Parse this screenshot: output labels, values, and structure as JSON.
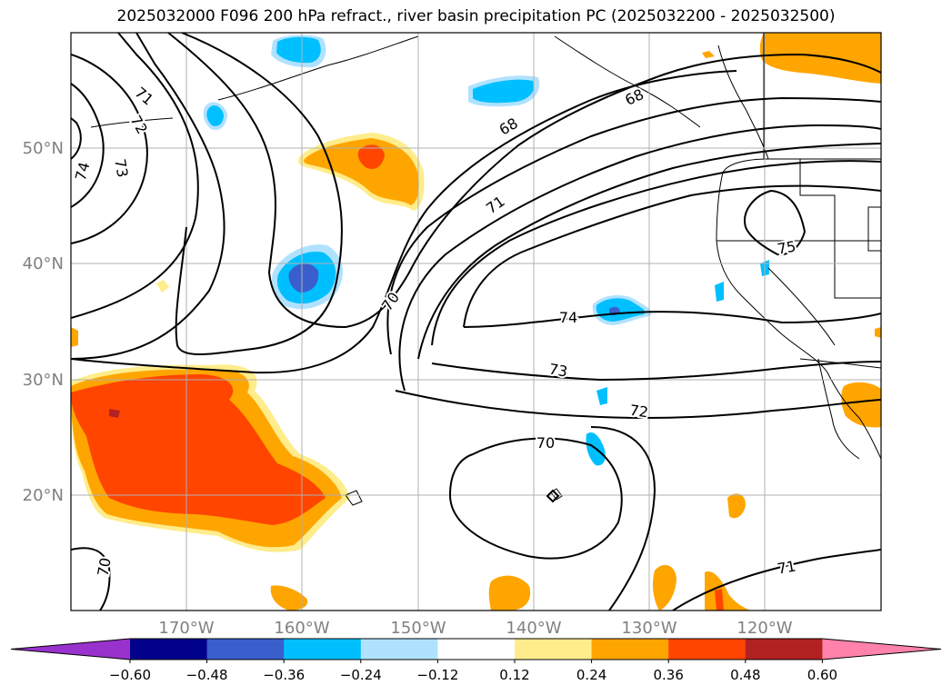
{
  "title": "2025032000 F096 200 hPa refract., river basin precipitation PC (2025032200 - 2025032500)",
  "lat_labels": [
    "50°N",
    "40°N",
    "30°N",
    "20°N"
  ],
  "lon_labels": [
    "170°W",
    "160°W",
    "150°W",
    "140°W",
    "130°W",
    "120°W"
  ],
  "contour_labels": [
    "71",
    "72",
    "73",
    "74",
    "68",
    "68",
    "71",
    "70",
    "74",
    "73",
    "72",
    "70",
    "75",
    "70",
    "71"
  ],
  "colorbar": {
    "ticks": [
      "−0.60",
      "−0.48",
      "−0.36",
      "−0.24",
      "−0.12",
      "0.12",
      "0.24",
      "0.36",
      "0.48",
      "0.60"
    ],
    "colors": [
      "#9932cc",
      "#00008b",
      "#3a5fcd",
      "#00bfff",
      "#b0e2ff",
      "#ffffff",
      "#ffec8b",
      "#ffa500",
      "#ff4500",
      "#b22222",
      "#ff82ab"
    ]
  },
  "colors": {
    "grid": "#b0b0b0",
    "axis_label": "#808080",
    "contour": "#000000"
  }
}
